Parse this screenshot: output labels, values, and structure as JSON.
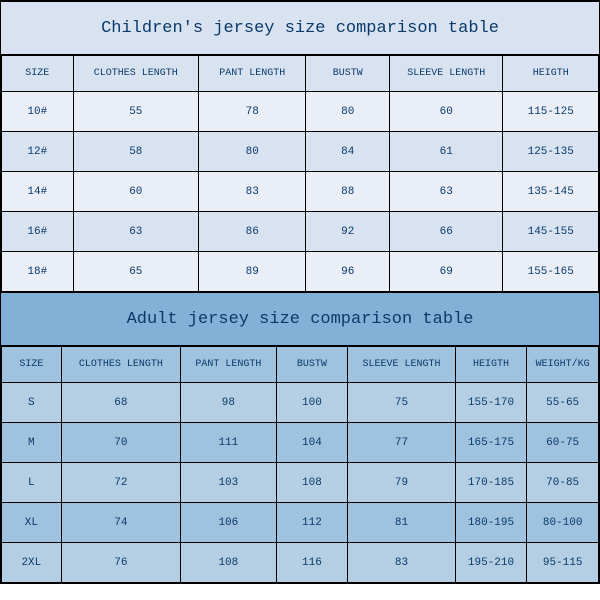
{
  "children": {
    "title": "Children's jersey size comparison table",
    "columns": [
      "SIZE",
      "CLOTHES LENGTH",
      "PANT LENGTH",
      "BUSTW",
      "SLEEVE LENGTH",
      "HEIGTH"
    ],
    "col_widths": [
      "12%",
      "21%",
      "18%",
      "14%",
      "19%",
      "16%"
    ],
    "rows": [
      [
        "10#",
        "55",
        "78",
        "80",
        "60",
        "115-125"
      ],
      [
        "12#",
        "58",
        "80",
        "84",
        "61",
        "125-135"
      ],
      [
        "14#",
        "60",
        "83",
        "88",
        "63",
        "135-145"
      ],
      [
        "16#",
        "63",
        "86",
        "92",
        "66",
        "145-155"
      ],
      [
        "18#",
        "65",
        "89",
        "96",
        "69",
        "155-165"
      ]
    ],
    "title_bg": "#d9e2f1",
    "header_bg": "#d9e2f1",
    "row_odd_bg": "#e9eef7",
    "row_even_bg": "#d9e2f1"
  },
  "adult": {
    "title": "Adult jersey size comparison table",
    "columns": [
      "SIZE",
      "CLOTHES LENGTH",
      "PANT LENGTH",
      "BUSTW",
      "SLEEVE LENGTH",
      "HEIGTH",
      "WEIGHT/KG"
    ],
    "col_widths": [
      "10%",
      "20%",
      "16%",
      "12%",
      "18%",
      "12%",
      "12%"
    ],
    "rows": [
      [
        "S",
        "68",
        "98",
        "100",
        "75",
        "155-170",
        "55-65"
      ],
      [
        "M",
        "70",
        "111",
        "104",
        "77",
        "165-175",
        "60-75"
      ],
      [
        "L",
        "72",
        "103",
        "108",
        "79",
        "170-185",
        "70-85"
      ],
      [
        "XL",
        "74",
        "106",
        "112",
        "81",
        "180-195",
        "80-100"
      ],
      [
        "2XL",
        "76",
        "108",
        "116",
        "83",
        "195-210",
        "95-115"
      ]
    ],
    "title_bg": "#82b0d6",
    "header_bg": "#9fc2de",
    "row_odd_bg": "#b4cfe4",
    "row_even_bg": "#9fc2de"
  },
  "text_color": "#0a3a6a",
  "border_color": "#000000",
  "title_fontsize": 17,
  "header_fontsize": 10,
  "cell_fontsize": 11
}
